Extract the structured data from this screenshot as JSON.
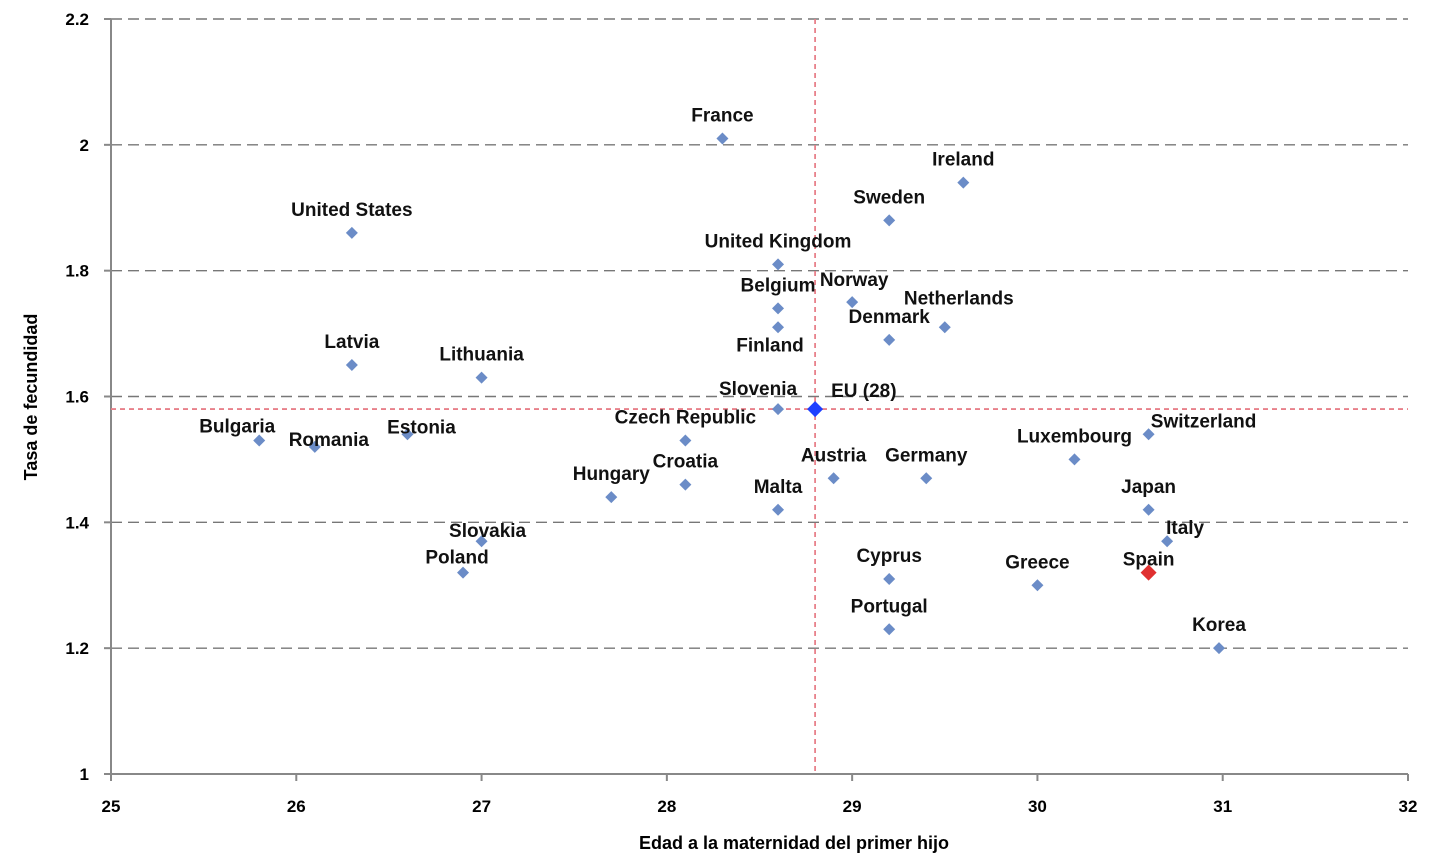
{
  "chart_data": {
    "type": "scatter",
    "title": "",
    "xlabel": "Edad a la maternidad del primer hijo",
    "ylabel": "Tasa de fecundidad",
    "xlim": [
      25,
      32
    ],
    "ylim": [
      1,
      2.2
    ],
    "x_ticks": [
      "25",
      "26",
      "27",
      "28",
      "29",
      "30",
      "31",
      "32"
    ],
    "y_ticks": [
      "1",
      "1.2",
      "1.4",
      "1.6",
      "1.8",
      "2",
      "2.2"
    ],
    "grid": "horizontal dashed",
    "reference_lines": {
      "x": 28.8,
      "y": 1.58,
      "color": "#e8808a"
    },
    "colors": {
      "point": "#6b8cc7",
      "eu": "#1f3fff",
      "spain": "#e03030",
      "grid": "#777777",
      "label": "#111111"
    },
    "points": [
      {
        "label": "France",
        "x": 28.3,
        "y": 2.01
      },
      {
        "label": "Ireland",
        "x": 29.6,
        "y": 1.94
      },
      {
        "label": "Sweden",
        "x": 29.2,
        "y": 1.88
      },
      {
        "label": "United States",
        "x": 26.3,
        "y": 1.86
      },
      {
        "label": "United Kingdom",
        "x": 28.6,
        "y": 1.81
      },
      {
        "label": "Belgium",
        "x": 28.6,
        "y": 1.74
      },
      {
        "label": "Norway",
        "x": 29.0,
        "y": 1.75
      },
      {
        "label": "Netherlands",
        "x": 29.5,
        "y": 1.71
      },
      {
        "label": "Denmark",
        "x": 29.2,
        "y": 1.69
      },
      {
        "label": "Finland",
        "x": 28.6,
        "y": 1.71
      },
      {
        "label": "Latvia",
        "x": 26.3,
        "y": 1.65
      },
      {
        "label": "Lithuania",
        "x": 27.0,
        "y": 1.63
      },
      {
        "label": "Slovenia",
        "x": 28.6,
        "y": 1.58
      },
      {
        "label": "EU (28)",
        "x": 28.8,
        "y": 1.58
      },
      {
        "label": "Czech Republic",
        "x": 28.1,
        "y": 1.53
      },
      {
        "label": "Bulgaria",
        "x": 25.8,
        "y": 1.53
      },
      {
        "label": "Romania",
        "x": 26.1,
        "y": 1.52
      },
      {
        "label": "Estonia",
        "x": 26.6,
        "y": 1.54
      },
      {
        "label": "Switzerland",
        "x": 30.6,
        "y": 1.54
      },
      {
        "label": "Luxembourg",
        "x": 30.2,
        "y": 1.5
      },
      {
        "label": "Austria",
        "x": 28.9,
        "y": 1.47
      },
      {
        "label": "Germany",
        "x": 29.4,
        "y": 1.47
      },
      {
        "label": "Croatia",
        "x": 28.1,
        "y": 1.46
      },
      {
        "label": "Hungary",
        "x": 27.7,
        "y": 1.44
      },
      {
        "label": "Malta",
        "x": 28.6,
        "y": 1.42
      },
      {
        "label": "Japan",
        "x": 30.6,
        "y": 1.42
      },
      {
        "label": "Slovakia",
        "x": 27.0,
        "y": 1.37
      },
      {
        "label": "Italy",
        "x": 30.7,
        "y": 1.37
      },
      {
        "label": "Poland",
        "x": 26.9,
        "y": 1.32
      },
      {
        "label": "Spain",
        "x": 30.6,
        "y": 1.32
      },
      {
        "label": "Cyprus",
        "x": 29.2,
        "y": 1.31
      },
      {
        "label": "Greece",
        "x": 30.0,
        "y": 1.3
      },
      {
        "label": "Portugal",
        "x": 29.2,
        "y": 1.23
      },
      {
        "label": "Korea",
        "x": 30.98,
        "y": 1.2
      }
    ]
  }
}
